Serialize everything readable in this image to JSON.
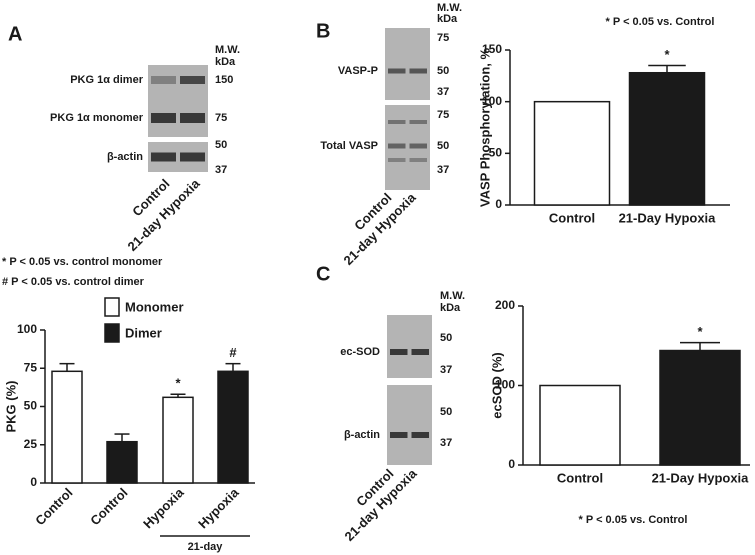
{
  "chart_data": [
    {
      "type": "bar",
      "panel": "A",
      "annotations": [
        "* P < 0.05 vs. control monomer",
        "# P < 0.05 vs. control dimer"
      ],
      "categories": [
        "Control",
        "Control",
        "Hypoxia",
        "Hypoxia"
      ],
      "group_label": "21-day",
      "series": [
        {
          "name": "Monomer",
          "color": "#ffffff",
          "values": [
            73,
            null,
            56,
            null
          ],
          "errors": [
            5,
            null,
            2,
            null
          ],
          "significance": [
            null,
            null,
            "*",
            null
          ]
        },
        {
          "name": "Dimer",
          "color": "#1a1a1a",
          "values": [
            null,
            27,
            null,
            73
          ],
          "errors": [
            null,
            5,
            null,
            5
          ],
          "significance": [
            null,
            null,
            null,
            "#"
          ]
        }
      ],
      "ylabel": "PKG (%)",
      "ylim": [
        0,
        100
      ],
      "yticks": [
        0,
        25,
        50,
        75,
        100
      ]
    },
    {
      "type": "bar",
      "panel": "B",
      "note": "* P < 0.05 vs. Control",
      "categories": [
        "Control",
        "21-Day Hypoxia"
      ],
      "values": [
        100,
        128
      ],
      "errors": [
        null,
        7
      ],
      "significance": [
        null,
        "*"
      ],
      "colors": [
        "#ffffff",
        "#1a1a1a"
      ],
      "ylabel": "VASP Phosphorylation, %",
      "ylim": [
        0,
        150
      ],
      "yticks": [
        0,
        50,
        100,
        150
      ]
    },
    {
      "type": "bar",
      "panel": "C",
      "note": "* P < 0.05 vs. Control",
      "categories": [
        "Control",
        "21-Day Hypoxia"
      ],
      "values": [
        100,
        144
      ],
      "errors": [
        null,
        10
      ],
      "significance": [
        null,
        "*"
      ],
      "colors": [
        "#ffffff",
        "#1a1a1a"
      ],
      "ylabel": "ecSOD (%)",
      "ylim": [
        0,
        200
      ],
      "yticks": [
        0,
        100,
        200
      ]
    }
  ],
  "blots": [
    {
      "mw": "M.W.",
      "unit": "kDa",
      "bands": [
        "PKG 1α dimer",
        "PKG 1α monomer",
        "β-actin"
      ],
      "markers": [
        150,
        75,
        50,
        37
      ],
      "lanes": [
        "Control",
        "21-day Hypoxia"
      ]
    },
    {
      "mw": "M.W.",
      "unit": "kDa",
      "bands": [
        "VASP-P",
        "Total VASP"
      ],
      "markers": [
        75,
        50,
        37,
        75,
        50,
        37
      ],
      "lanes": [
        "Control",
        "21-day Hypoxia"
      ]
    },
    {
      "mw": "M.W.",
      "unit": "kDa",
      "bands": [
        "ec-SOD",
        "β-actin"
      ],
      "markers": [
        50,
        37,
        50,
        37
      ],
      "lanes": [
        "Control",
        "21-day Hypoxia"
      ]
    }
  ]
}
